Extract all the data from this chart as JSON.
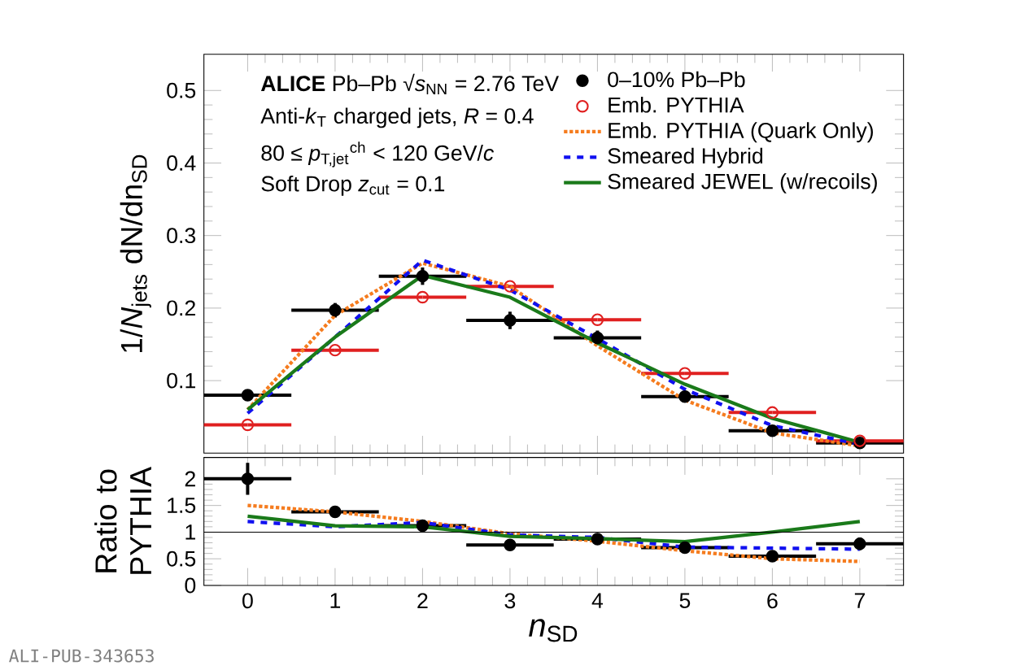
{
  "chart_data": [
    {
      "type": "line",
      "ylabel": "1/*N*$_{jets}$ dN/dn$_{SD}$",
      "x": [
        0,
        1,
        2,
        3,
        4,
        5,
        6,
        7
      ],
      "xlim": [
        -0.5,
        7.5
      ],
      "xticks": [
        0,
        1,
        2,
        3,
        4,
        5,
        6,
        7
      ],
      "ylim": [
        0,
        0.55
      ],
      "yticks": [
        0.1,
        0.2,
        0.3,
        0.4,
        0.5
      ],
      "tick_labels": "y",
      "legend": "top right",
      "annotations": [
        "**ALICE** Pb–Pb √*s*$_{NN}$ = 2.76 TeV",
        "Anti-*k*$_{T}$  charged jets, *R* = 0.4",
        "80 ≤ *p*$_{T,jet}$$^{ch}$ < 120 GeV/*c*",
        "Soft Drop *z*$_{cut}$ = 0.1"
      ],
      "series": [
        {
          "name": "0–10% Pb–Pb",
          "type": "scatter",
          "marker": "circle",
          "color": "#000000",
          "values": [
            0.08,
            0.197,
            0.244,
            0.183,
            0.159,
            0.078,
            0.031,
            0.014
          ],
          "errors": [
            0.006,
            0.01,
            0.012,
            0.012,
            0.01,
            0.008,
            0.005,
            0.004
          ],
          "xerrors": [
            0.5,
            0.5,
            0.5,
            0.5,
            0.5,
            0.5,
            0.5,
            0.5
          ]
        },
        {
          "name": "Emb. PYTHIA",
          "type": "scatter",
          "marker": "circle",
          "color": "#e02020",
          "values": [
            0.039,
            0.142,
            0.215,
            0.23,
            0.184,
            0.11,
            0.056,
            0.017
          ],
          "xerrors": [
            0.5,
            0.5,
            0.5,
            0.5,
            0.5,
            0.5,
            0.5,
            0.5
          ]
        },
        {
          "name": "Emb. PYTHIA (Quark Only)",
          "line_style": "dotted",
          "color": "#f57c1f",
          "values": [
            0.06,
            0.19,
            0.262,
            0.23,
            0.148,
            0.073,
            0.028,
            0.01
          ]
        },
        {
          "name": "Smeared Hybrid",
          "line_style": "dashed",
          "color": "#1010f0",
          "values": [
            0.055,
            0.16,
            0.266,
            0.225,
            0.158,
            0.088,
            0.038,
            0.012
          ]
        },
        {
          "name": "Smeared JEWEL (w/recoils)",
          "line_style": "solid",
          "color": "#1a7a1a",
          "values": [
            0.06,
            0.16,
            0.245,
            0.215,
            0.152,
            0.095,
            0.048,
            0.015
          ]
        }
      ]
    },
    {
      "type": "line",
      "xlabel": "*n*$_{SD}$",
      "ylabel": "Ratio to PYTHIA",
      "x": [
        0,
        1,
        2,
        3,
        4,
        5,
        6,
        7
      ],
      "xlim": [
        -0.5,
        7.5
      ],
      "xticks": [
        0,
        1,
        2,
        3,
        4,
        5,
        6,
        7
      ],
      "ylim": [
        0,
        2.4
      ],
      "yticks": [
        0,
        0.5,
        1,
        1.5,
        2
      ],
      "ref_lines": [
        {
          "axis": "y",
          "value": 1,
          "color": "#000000"
        }
      ],
      "annotations": [
        "ALI-PUB-343653"
      ],
      "series": [
        {
          "type": "scatter",
          "marker": "circle",
          "color": "#000000",
          "values": [
            2.0,
            1.38,
            1.12,
            0.76,
            0.87,
            0.71,
            0.55,
            0.78
          ],
          "errors": [
            0.3,
            0.08,
            0.08,
            0.06,
            0.06,
            0.06,
            0.07,
            0.12
          ],
          "xerrors": [
            0.5,
            0.5,
            0.5,
            0.5,
            0.5,
            0.5,
            0.5,
            0.5
          ]
        },
        {
          "line_style": "dotted",
          "color": "#f57c1f",
          "values": [
            1.5,
            1.38,
            1.2,
            0.97,
            0.83,
            0.65,
            0.5,
            0.45
          ]
        },
        {
          "line_style": "dashed",
          "color": "#1010f0",
          "values": [
            1.2,
            1.1,
            1.18,
            0.95,
            0.9,
            0.72,
            0.7,
            0.68
          ]
        },
        {
          "line_style": "solid",
          "color": "#1a7a1a",
          "values": [
            1.3,
            1.12,
            1.1,
            0.92,
            0.88,
            0.82,
            1.0,
            1.2
          ]
        }
      ]
    }
  ]
}
